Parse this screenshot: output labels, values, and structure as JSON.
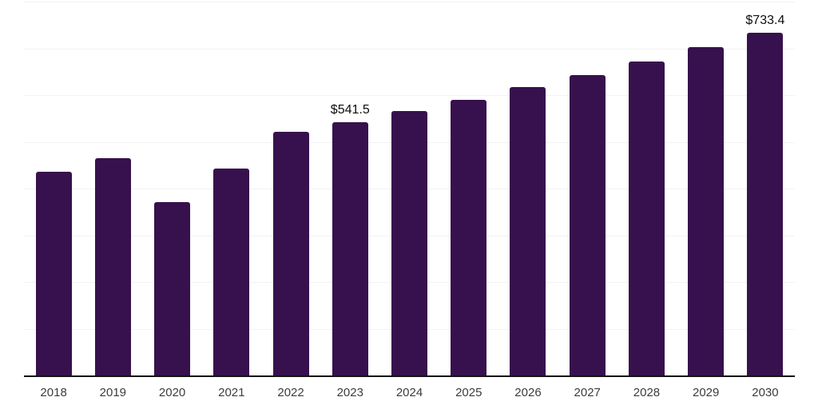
{
  "chart_data": {
    "type": "bar",
    "title": "",
    "xlabel": "",
    "ylabel": "",
    "categories": [
      "2018",
      "2019",
      "2020",
      "2021",
      "2022",
      "2023",
      "2024",
      "2025",
      "2026",
      "2027",
      "2028",
      "2029",
      "2030"
    ],
    "values": [
      436.0,
      465.0,
      371.0,
      443.5,
      522.0,
      541.5,
      565.4,
      590.5,
      616.5,
      643.5,
      672.0,
      702.0,
      733.4
    ],
    "data_labels": [
      "",
      "",
      "",
      "",
      "",
      "$541.5",
      "",
      "",
      "",
      "",
      "",
      "",
      "$733.4"
    ],
    "ylim": [
      0,
      800
    ],
    "gridline_step": 100,
    "grid": true,
    "legend_position": "none",
    "y_axis_tick_labels_visible": false,
    "currency_prefix": "$"
  },
  "style": {
    "bar_color": "#37114D",
    "gridline_color": "#f2f2f2",
    "axis_line_color": "#141414",
    "tick_label_color": "#3c3c3c",
    "data_label_color": "#0d0d0d",
    "background_color": "#ffffff"
  }
}
